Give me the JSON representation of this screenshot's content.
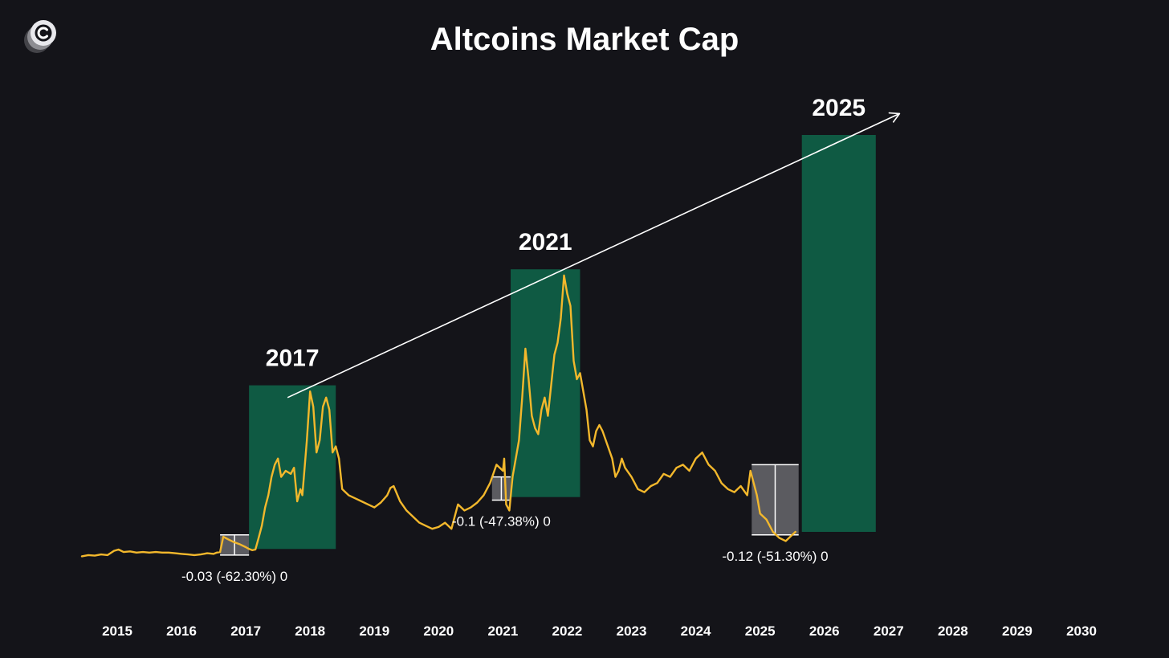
{
  "chart_data": {
    "type": "line",
    "title": "Altcoins Market Cap",
    "xlabel": "",
    "ylabel": "",
    "xlim": [
      2015,
      2030
    ],
    "x_ticks": [
      "2015",
      "2016",
      "2017",
      "2018",
      "2019",
      "2020",
      "2021",
      "2022",
      "2023",
      "2024",
      "2025",
      "2026",
      "2027",
      "2028",
      "2029",
      "2030"
    ],
    "grid": false,
    "legend": "none",
    "colors": {
      "background": "#141419",
      "line": "#f3b82c",
      "cycle_box": "#0f5a43",
      "drawdown_box": "#5b5b60",
      "text": "#ffffff",
      "trend_arrow": "#ffffff"
    },
    "series": [
      {
        "points": [
          [
            2014.45,
            0.01
          ],
          [
            2014.55,
            0.012
          ],
          [
            2014.65,
            0.011
          ],
          [
            2014.75,
            0.013
          ],
          [
            2014.85,
            0.012
          ],
          [
            2014.95,
            0.019
          ],
          [
            2015.02,
            0.021
          ],
          [
            2015.1,
            0.017
          ],
          [
            2015.2,
            0.018
          ],
          [
            2015.3,
            0.016
          ],
          [
            2015.4,
            0.017
          ],
          [
            2015.5,
            0.016
          ],
          [
            2015.6,
            0.017
          ],
          [
            2015.7,
            0.016
          ],
          [
            2015.8,
            0.016
          ],
          [
            2015.9,
            0.015
          ],
          [
            2016.0,
            0.014
          ],
          [
            2016.1,
            0.013
          ],
          [
            2016.2,
            0.012
          ],
          [
            2016.3,
            0.013
          ],
          [
            2016.4,
            0.015
          ],
          [
            2016.5,
            0.014
          ],
          [
            2016.55,
            0.016
          ],
          [
            2016.6,
            0.017
          ],
          [
            2016.65,
            0.042
          ],
          [
            2016.72,
            0.038
          ],
          [
            2016.8,
            0.034
          ],
          [
            2016.9,
            0.03
          ],
          [
            2017.0,
            0.025
          ],
          [
            2017.05,
            0.022
          ],
          [
            2017.1,
            0.02
          ],
          [
            2017.15,
            0.021
          ],
          [
            2017.2,
            0.04
          ],
          [
            2017.25,
            0.06
          ],
          [
            2017.3,
            0.09
          ],
          [
            2017.35,
            0.11
          ],
          [
            2017.4,
            0.14
          ],
          [
            2017.45,
            0.16
          ],
          [
            2017.5,
            0.17
          ],
          [
            2017.55,
            0.14
          ],
          [
            2017.62,
            0.15
          ],
          [
            2017.7,
            0.145
          ],
          [
            2017.75,
            0.155
          ],
          [
            2017.8,
            0.1
          ],
          [
            2017.85,
            0.12
          ],
          [
            2017.88,
            0.11
          ],
          [
            2017.95,
            0.2
          ],
          [
            2018.0,
            0.28
          ],
          [
            2018.05,
            0.255
          ],
          [
            2018.1,
            0.18
          ],
          [
            2018.15,
            0.2
          ],
          [
            2018.2,
            0.255
          ],
          [
            2018.25,
            0.27
          ],
          [
            2018.3,
            0.25
          ],
          [
            2018.35,
            0.18
          ],
          [
            2018.4,
            0.19
          ],
          [
            2018.45,
            0.17
          ],
          [
            2018.5,
            0.12
          ],
          [
            2018.6,
            0.11
          ],
          [
            2018.7,
            0.105
          ],
          [
            2018.8,
            0.1
          ],
          [
            2018.9,
            0.095
          ],
          [
            2019.0,
            0.09
          ],
          [
            2019.1,
            0.098
          ],
          [
            2019.2,
            0.11
          ],
          [
            2019.25,
            0.122
          ],
          [
            2019.3,
            0.125
          ],
          [
            2019.4,
            0.1
          ],
          [
            2019.5,
            0.085
          ],
          [
            2019.6,
            0.075
          ],
          [
            2019.7,
            0.065
          ],
          [
            2019.8,
            0.06
          ],
          [
            2019.9,
            0.055
          ],
          [
            2020.0,
            0.058
          ],
          [
            2020.1,
            0.065
          ],
          [
            2020.2,
            0.055
          ],
          [
            2020.3,
            0.095
          ],
          [
            2020.4,
            0.085
          ],
          [
            2020.5,
            0.09
          ],
          [
            2020.6,
            0.098
          ],
          [
            2020.7,
            0.11
          ],
          [
            2020.8,
            0.13
          ],
          [
            2020.9,
            0.16
          ],
          [
            2021.0,
            0.15
          ],
          [
            2021.02,
            0.17
          ],
          [
            2021.05,
            0.095
          ],
          [
            2021.1,
            0.085
          ],
          [
            2021.15,
            0.14
          ],
          [
            2021.2,
            0.17
          ],
          [
            2021.25,
            0.2
          ],
          [
            2021.3,
            0.27
          ],
          [
            2021.35,
            0.35
          ],
          [
            2021.4,
            0.3
          ],
          [
            2021.45,
            0.24
          ],
          [
            2021.5,
            0.22
          ],
          [
            2021.55,
            0.21
          ],
          [
            2021.6,
            0.25
          ],
          [
            2021.65,
            0.27
          ],
          [
            2021.7,
            0.24
          ],
          [
            2021.8,
            0.34
          ],
          [
            2021.85,
            0.36
          ],
          [
            2021.9,
            0.4
          ],
          [
            2021.95,
            0.47
          ],
          [
            2022.0,
            0.44
          ],
          [
            2022.05,
            0.42
          ],
          [
            2022.1,
            0.33
          ],
          [
            2022.15,
            0.3
          ],
          [
            2022.2,
            0.31
          ],
          [
            2022.25,
            0.28
          ],
          [
            2022.3,
            0.25
          ],
          [
            2022.35,
            0.2
          ],
          [
            2022.4,
            0.19
          ],
          [
            2022.45,
            0.215
          ],
          [
            2022.5,
            0.225
          ],
          [
            2022.55,
            0.215
          ],
          [
            2022.6,
            0.2
          ],
          [
            2022.7,
            0.17
          ],
          [
            2022.75,
            0.14
          ],
          [
            2022.8,
            0.15
          ],
          [
            2022.85,
            0.17
          ],
          [
            2022.9,
            0.155
          ],
          [
            2023.0,
            0.14
          ],
          [
            2023.1,
            0.12
          ],
          [
            2023.2,
            0.115
          ],
          [
            2023.3,
            0.125
          ],
          [
            2023.4,
            0.13
          ],
          [
            2023.5,
            0.145
          ],
          [
            2023.6,
            0.14
          ],
          [
            2023.7,
            0.155
          ],
          [
            2023.8,
            0.16
          ],
          [
            2023.9,
            0.15
          ],
          [
            2024.0,
            0.17
          ],
          [
            2024.1,
            0.18
          ],
          [
            2024.2,
            0.16
          ],
          [
            2024.3,
            0.15
          ],
          [
            2024.4,
            0.13
          ],
          [
            2024.5,
            0.12
          ],
          [
            2024.6,
            0.115
          ],
          [
            2024.7,
            0.125
          ],
          [
            2024.8,
            0.11
          ],
          [
            2024.85,
            0.15
          ],
          [
            2024.9,
            0.13
          ],
          [
            2024.95,
            0.11
          ],
          [
            2025.0,
            0.08
          ],
          [
            2025.1,
            0.07
          ],
          [
            2025.2,
            0.05
          ],
          [
            2025.3,
            0.04
          ],
          [
            2025.4,
            0.035
          ],
          [
            2025.5,
            0.045
          ],
          [
            2025.55,
            0.05
          ]
        ]
      }
    ],
    "cycles": [
      {
        "label": "2017",
        "x_start": 2017.05,
        "x_end": 2018.4,
        "y_top": 0.29
      },
      {
        "label": "2021",
        "x_start": 2021.12,
        "x_end": 2022.2,
        "y_top": 0.48
      },
      {
        "label": "2025",
        "x_start": 2025.65,
        "x_end": 2026.8,
        "y_top": 0.7
      }
    ],
    "drawdowns": [
      {
        "label": "-0.03 (-62.30%) 0",
        "x_start": 2016.6,
        "x_end": 2017.05,
        "y_top": 0.045
      },
      {
        "label": "-0.1 (-47.38%) 0",
        "x_start": 2020.83,
        "x_end": 2021.12,
        "y_top": 0.14
      },
      {
        "label": "-0.12 (-51.30%) 0",
        "x_start": 2024.87,
        "x_end": 2025.6,
        "y_top": 0.16
      }
    ],
    "trend_arrow": {
      "from": [
        2017.65,
        0.27
      ],
      "to": [
        2027.17,
        0.735
      ]
    }
  }
}
